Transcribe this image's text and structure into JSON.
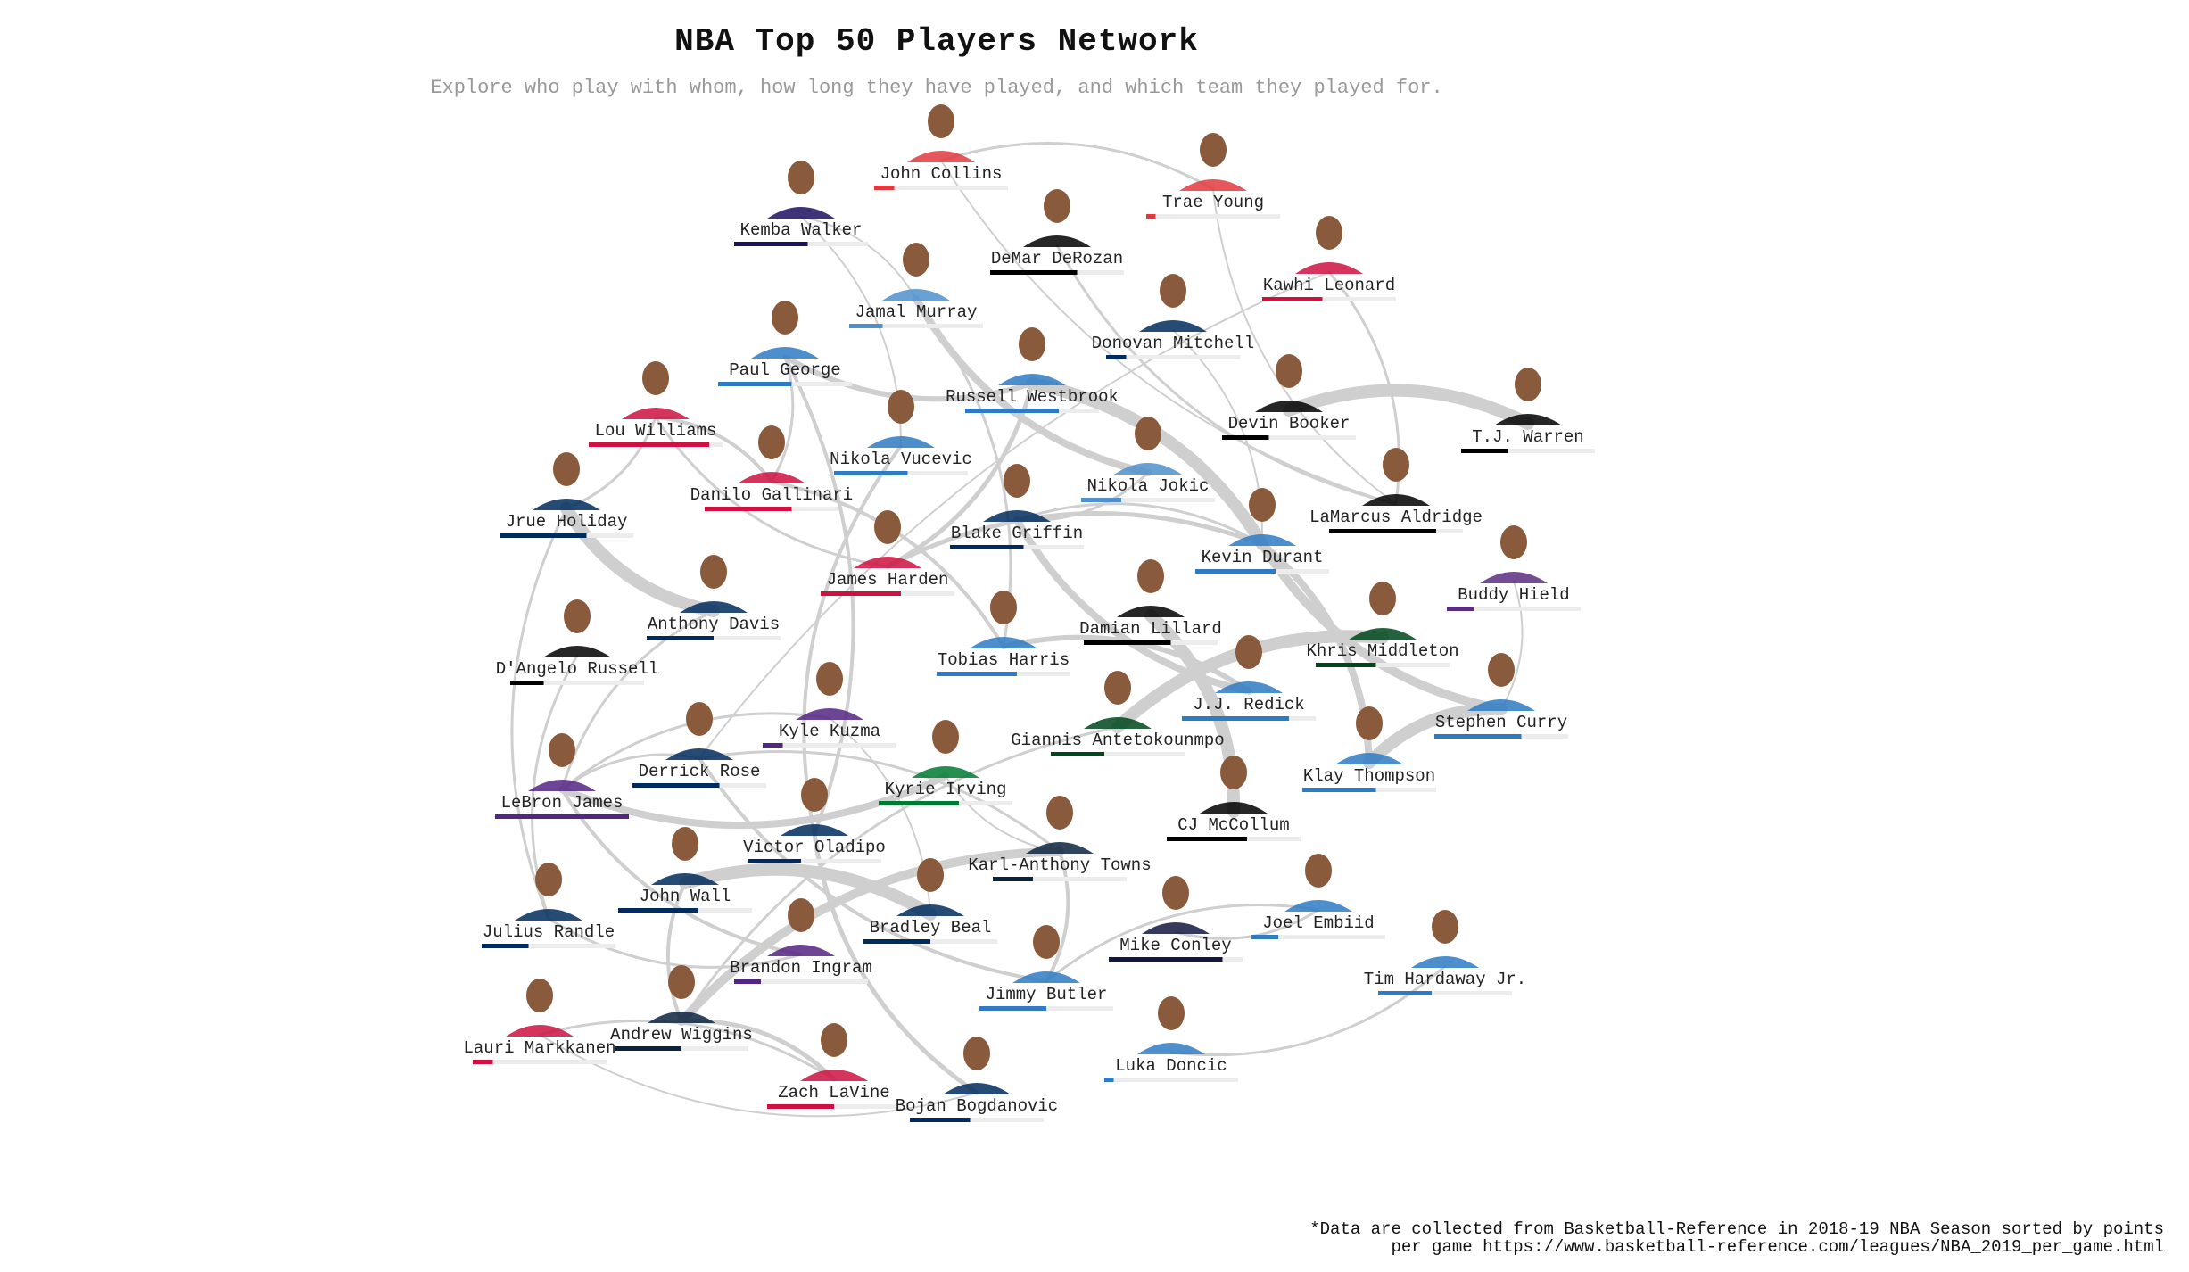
{
  "title": "NBA Top 50 Players Network",
  "subtitle": "Explore who play with whom, how long they have played, and which team they played for.",
  "footnote": "*Data are collected from Basketball-Reference in 2018-19 NBA Season sorted by points per game https://www.basketball-reference.com/leagues/NBA_2019_per_game.html",
  "players": [
    {
      "name": "John Collins",
      "color": "#e03a3e",
      "years": 0.15
    },
    {
      "name": "Trae Young",
      "color": "#e03a3e",
      "years": 0.07
    },
    {
      "name": "Kemba Walker",
      "color": "#1d1160",
      "years": 0.55
    },
    {
      "name": "DeMar DeRozan",
      "color": "#000000",
      "years": 0.65
    },
    {
      "name": "Kawhi Leonard",
      "color": "#ce1141",
      "years": 0.45
    },
    {
      "name": "Jamal Murray",
      "color": "#5091cd",
      "years": 0.25
    },
    {
      "name": "Donovan Mitchell",
      "color": "#002b5c",
      "years": 0.15
    },
    {
      "name": "Paul George",
      "color": "#2e7bc4",
      "years": 0.55
    },
    {
      "name": "Russell Westbrook",
      "color": "#2e7bc4",
      "years": 0.7
    },
    {
      "name": "Devin Booker",
      "color": "#000000",
      "years": 0.35
    },
    {
      "name": "T.J. Warren",
      "color": "#000000",
      "years": 0.35
    },
    {
      "name": "Lou Williams",
      "color": "#ce1141",
      "years": 0.9
    },
    {
      "name": "Nikola Vucevic",
      "color": "#2e7bc4",
      "years": 0.55
    },
    {
      "name": "Nikola Jokic",
      "color": "#5091cd",
      "years": 0.3
    },
    {
      "name": "Danilo Gallinari",
      "color": "#ce1141",
      "years": 0.65
    },
    {
      "name": "LaMarcus Aldridge",
      "color": "#000000",
      "years": 0.8
    },
    {
      "name": "Jrue Holiday",
      "color": "#002b5c",
      "years": 0.65
    },
    {
      "name": "Blake Griffin",
      "color": "#002b5c",
      "years": 0.55
    },
    {
      "name": "Kevin Durant",
      "color": "#2e7bc4",
      "years": 0.6
    },
    {
      "name": "James Harden",
      "color": "#ce1141",
      "years": 0.6
    },
    {
      "name": "Buddy Hield",
      "color": "#5a2d81",
      "years": 0.2
    },
    {
      "name": "Anthony Davis",
      "color": "#002b5c",
      "years": 0.5
    },
    {
      "name": "Damian Lillard",
      "color": "#000000",
      "years": 0.65
    },
    {
      "name": "Tobias Harris",
      "color": "#2e7bc4",
      "years": 0.6
    },
    {
      "name": "Khris Middleton",
      "color": "#00471b",
      "years": 0.45
    },
    {
      "name": "D'Angelo Russell",
      "color": "#000000",
      "years": 0.25
    },
    {
      "name": "J.J. Redick",
      "color": "#2e7bc4",
      "years": 0.8
    },
    {
      "name": "Kyle Kuzma",
      "color": "#552583",
      "years": 0.15
    },
    {
      "name": "Stephen Curry",
      "color": "#2e7bc4",
      "years": 0.65
    },
    {
      "name": "Derrick Rose",
      "color": "#002b5c",
      "years": 0.65
    },
    {
      "name": "Giannis Antetokounmpo",
      "color": "#00471b",
      "years": 0.4
    },
    {
      "name": "Kyrie Irving",
      "color": "#007a33",
      "years": 0.6
    },
    {
      "name": "LeBron James",
      "color": "#552583",
      "years": 1.0
    },
    {
      "name": "Klay Thompson",
      "color": "#2e7bc4",
      "years": 0.55
    },
    {
      "name": "CJ McCollum",
      "color": "#000000",
      "years": 0.6
    },
    {
      "name": "Victor Oladipo",
      "color": "#002b5c",
      "years": 0.4
    },
    {
      "name": "Karl-Anthony Towns",
      "color": "#0c2340",
      "years": 0.3
    },
    {
      "name": "John Wall",
      "color": "#002b5c",
      "years": 0.6
    },
    {
      "name": "Julius Randle",
      "color": "#002b5c",
      "years": 0.35
    },
    {
      "name": "Mike Conley",
      "color": "#12173f",
      "years": 0.85
    },
    {
      "name": "Joel Embiid",
      "color": "#2e7bc4",
      "years": 0.2
    },
    {
      "name": "Bradley Beal",
      "color": "#002b5c",
      "years": 0.5
    },
    {
      "name": "Tim Hardaway Jr.",
      "color": "#2e7bc4",
      "years": 0.4
    },
    {
      "name": "Brandon Ingram",
      "color": "#552583",
      "years": 0.2
    },
    {
      "name": "Jimmy Butler",
      "color": "#2e7bc4",
      "years": 0.5
    },
    {
      "name": "Lauri Markkanen",
      "color": "#ce1141",
      "years": 0.15
    },
    {
      "name": "Andrew Wiggins",
      "color": "#0c2340",
      "years": 0.5
    },
    {
      "name": "Luka Doncic",
      "color": "#2e7bc4",
      "years": 0.07
    },
    {
      "name": "Zach LaVine",
      "color": "#ce1141",
      "years": 0.5
    },
    {
      "name": "Bojan Bogdanovic",
      "color": "#002b5c",
      "years": 0.45
    }
  ]
}
